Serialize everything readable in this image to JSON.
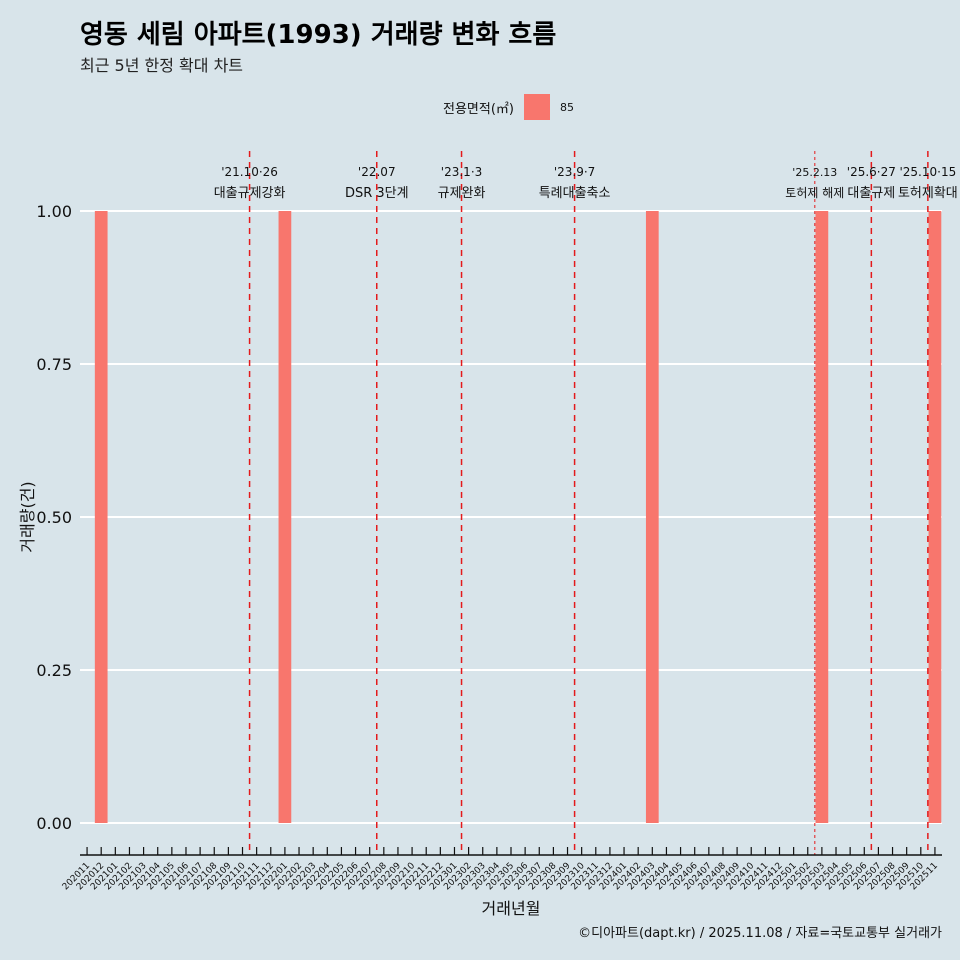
{
  "title": "영동 세림 아파트(1993) 거래량 변화 흐름",
  "subtitle": "최근 5년 한정 확대 차트",
  "caption": "©디아파트(dapt.kr) / 2025.11.08 / 자료=국토교통부 실거래가",
  "legend": {
    "title": "전용면적(㎡)",
    "label": "85",
    "color": "#f8766d"
  },
  "colors": {
    "background": "#d8e4ea",
    "bar": "#f8766d",
    "event_line": "#e31a1c",
    "grid": "#ffffff"
  },
  "chart_data": {
    "type": "bar",
    "title": "영동 세림 아파트(1993) 거래량 변화 흐름",
    "xlabel": "거래년월",
    "ylabel": "거래량(건)",
    "ylim": [
      0,
      1
    ],
    "y_ticks": [
      "0.00",
      "0.25",
      "0.50",
      "0.75",
      "1.00"
    ],
    "categories": [
      "202011",
      "202012",
      "202101",
      "202102",
      "202103",
      "202104",
      "202105",
      "202106",
      "202107",
      "202108",
      "202109",
      "202110",
      "202111",
      "202112",
      "202201",
      "202202",
      "202203",
      "202204",
      "202205",
      "202206",
      "202207",
      "202208",
      "202209",
      "202210",
      "202211",
      "202212",
      "202301",
      "202302",
      "202303",
      "202304",
      "202305",
      "202306",
      "202307",
      "202308",
      "202309",
      "202310",
      "202311",
      "202312",
      "202401",
      "202402",
      "202403",
      "202404",
      "202405",
      "202406",
      "202407",
      "202408",
      "202409",
      "202410",
      "202411",
      "202412",
      "202501",
      "202502",
      "202503",
      "202504",
      "202505",
      "202506",
      "202507",
      "202508",
      "202509",
      "202510",
      "202511"
    ],
    "series": [
      {
        "name": "85",
        "values": [
          0,
          1,
          0,
          0,
          0,
          0,
          0,
          0,
          0,
          0,
          0,
          0,
          0,
          0,
          1,
          0,
          0,
          0,
          0,
          0,
          0,
          0,
          0,
          0,
          0,
          0,
          0,
          0,
          0,
          0,
          0,
          0,
          0,
          0,
          0,
          0,
          0,
          0,
          0,
          0,
          1,
          0,
          0,
          0,
          0,
          0,
          0,
          0,
          0,
          0,
          0,
          0,
          1,
          0,
          0,
          0,
          0,
          0,
          0,
          0,
          1
        ]
      }
    ],
    "events": [
      {
        "date": "'21.10·26",
        "label": "대출규제강화",
        "position": 11.5,
        "style": "dashed"
      },
      {
        "date": "'22.07",
        "label": "DSR 3단계",
        "position": 20.5,
        "style": "dashed"
      },
      {
        "date": "'23.1·3",
        "label": "규제완화",
        "position": 26.5,
        "style": "dashed"
      },
      {
        "date": "'23.9·7",
        "label": "특례대출축소",
        "position": 34.5,
        "style": "dashed"
      },
      {
        "date": "'25.2.13",
        "label": "토허제 해제",
        "position": 51.5,
        "style": "dotted"
      },
      {
        "date": "'25.6·27",
        "label": "대출규제",
        "position": 55.5,
        "style": "dashed"
      },
      {
        "date": "'25.10·15",
        "label": "토허제확대",
        "position": 59.5,
        "style": "dashed"
      }
    ]
  }
}
